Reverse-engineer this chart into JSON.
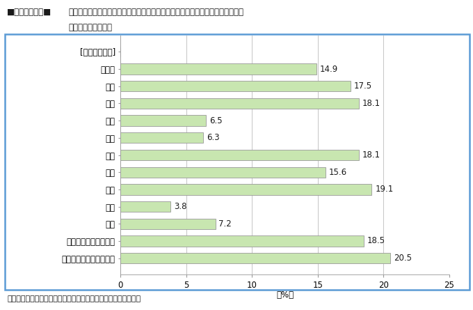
{
  "categories": [
    "[地域ブロック]",
    "北海道",
    "東北",
    "関東",
    "北陸",
    "東山",
    "東海",
    "近畿",
    "中国",
    "四国",
    "九州",
    "東海地震対策強化地域",
    "南関東直下地震対策地域"
  ],
  "values": [
    0,
    14.9,
    17.5,
    18.1,
    6.5,
    6.3,
    18.1,
    15.6,
    19.1,
    3.8,
    7.2,
    18.5,
    20.5
  ],
  "bar_color": "#c8e6b0",
  "bar_edge_color": "#999999",
  "xlim": [
    0,
    25
  ],
  "xticks": [
    0,
    5,
    10,
    15,
    20,
    25
  ],
  "grid_color": "#bbbbbb",
  "background_color": "#ffffff",
  "border_color": "#5b9bd5",
  "title_prefix": "■図３－１－７■",
  "title_text": "大地震に備えて「家具や冷蔵庫などを固定し，転倒を防止している」と回答した",
  "title_text2": "者の割合（地域別）",
  "xlabel": "（%）",
  "note": "（注）東山ブロックは，山梨県，長野県，岐阜県で構成される。"
}
